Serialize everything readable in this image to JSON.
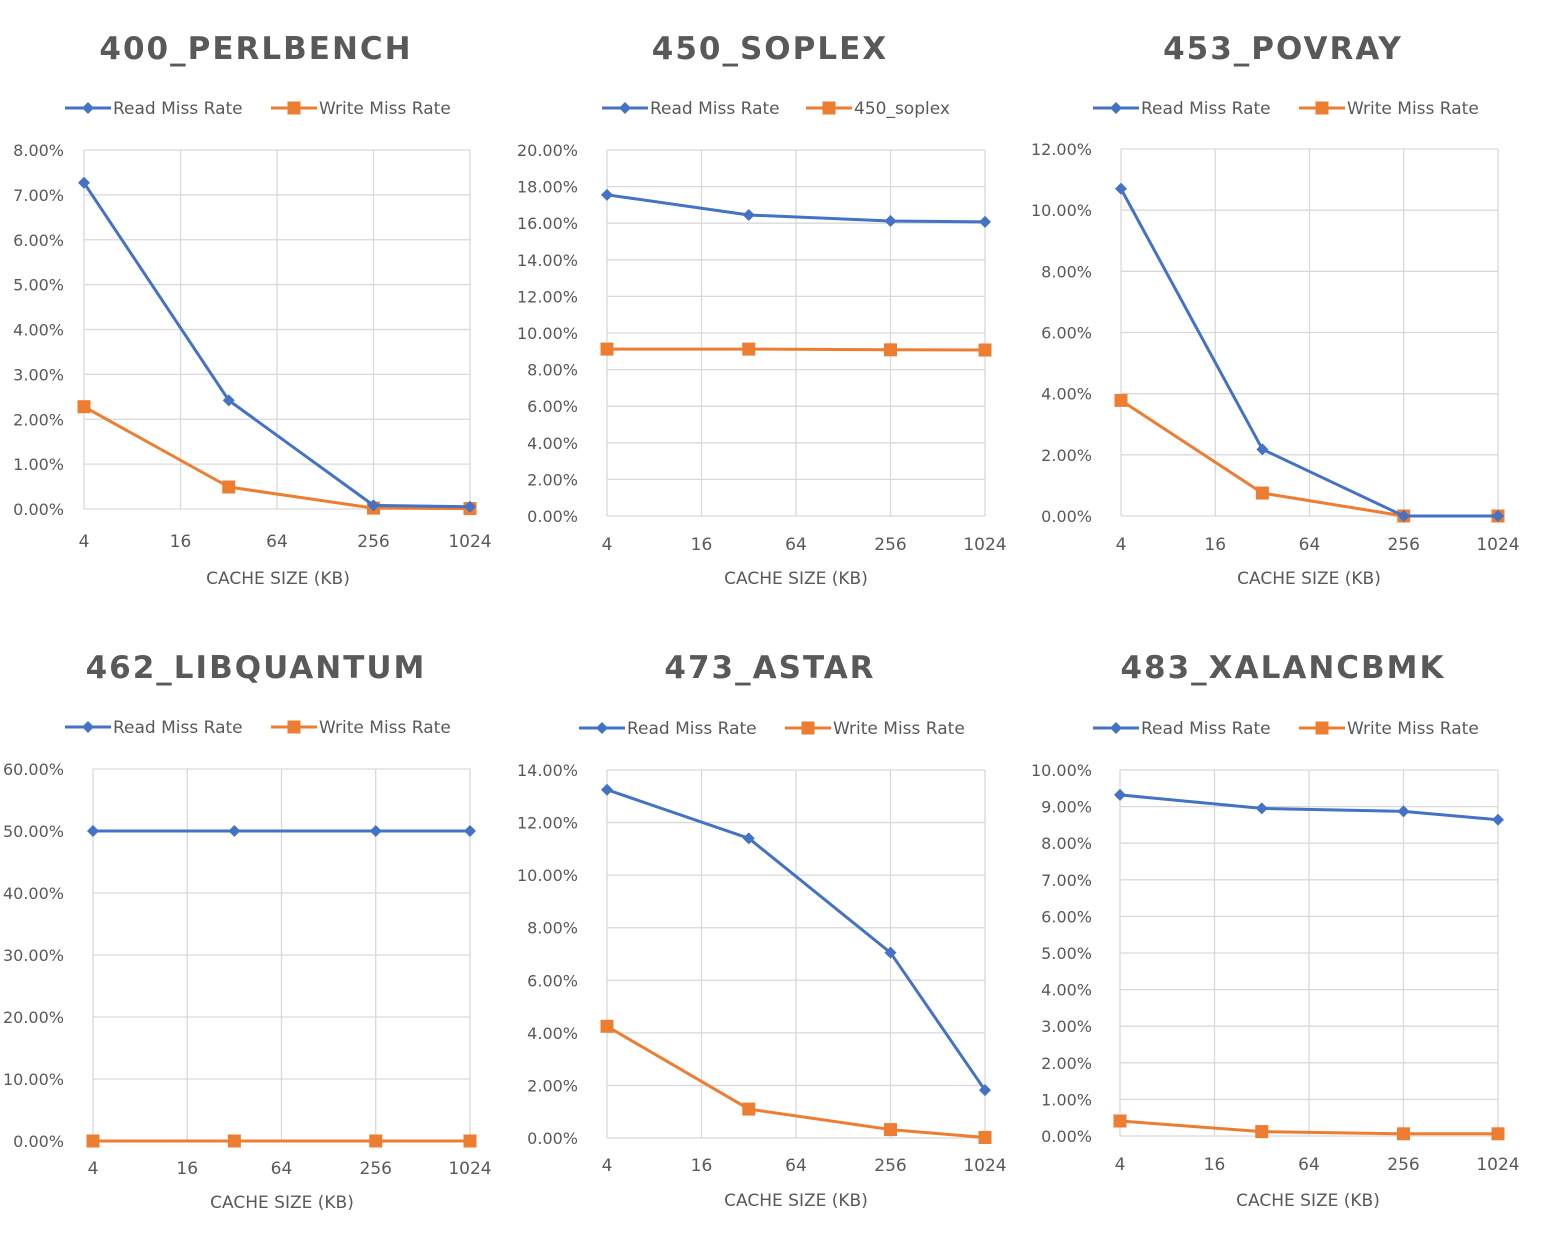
{
  "colors": {
    "read": "#4472C4",
    "write": "#ED7D31",
    "grid": "#D9D9D9",
    "text": "#595959"
  },
  "chart_data": [
    {
      "type": "line",
      "title": "400_PERLBENCH",
      "xlabel": "CACHE SIZE (KB)",
      "x_scale": "log2",
      "x_ticks": [
        "4",
        "16",
        "64",
        "256",
        "1024"
      ],
      "x_tick_values": [
        4,
        16,
        64,
        256,
        1024
      ],
      "x": [
        4,
        32,
        256,
        1024
      ],
      "y_ticks": [
        "0.00%",
        "1.00%",
        "2.00%",
        "3.00%",
        "4.00%",
        "5.00%",
        "6.00%",
        "7.00%",
        "8.00%"
      ],
      "ylim": [
        0,
        8
      ],
      "legend": "top",
      "grid": true,
      "series": [
        {
          "name": "Read Miss Rate",
          "marker": "diamond",
          "values": [
            7.27,
            2.42,
            0.08,
            0.05
          ]
        },
        {
          "name": "Write Miss Rate",
          "marker": "square",
          "values": [
            2.28,
            0.49,
            0.02,
            0.01
          ]
        }
      ]
    },
    {
      "type": "line",
      "title": "450_SOPLEX",
      "xlabel": "CACHE SIZE (KB)",
      "x_scale": "log2",
      "x_ticks": [
        "4",
        "16",
        "64",
        "256",
        "1024"
      ],
      "x_tick_values": [
        4,
        16,
        64,
        256,
        1024
      ],
      "x": [
        4,
        32,
        256,
        1024
      ],
      "y_ticks": [
        "0.00%",
        "2.00%",
        "4.00%",
        "6.00%",
        "8.00%",
        "10.00%",
        "12.00%",
        "14.00%",
        "16.00%",
        "18.00%",
        "20.00%"
      ],
      "ylim": [
        0,
        20
      ],
      "legend": "top",
      "grid": true,
      "series": [
        {
          "name": "Read Miss Rate",
          "marker": "diamond",
          "values": [
            17.55,
            16.45,
            16.12,
            16.07
          ]
        },
        {
          "name": "450_soplex",
          "marker": "square",
          "values": [
            9.12,
            9.12,
            9.08,
            9.07
          ]
        }
      ]
    },
    {
      "type": "line",
      "title": "453_POVRAY",
      "xlabel": "CACHE SIZE (KB)",
      "x_scale": "log2",
      "x_ticks": [
        "4",
        "16",
        "64",
        "256",
        "1024"
      ],
      "x_tick_values": [
        4,
        16,
        64,
        256,
        1024
      ],
      "x": [
        4,
        32,
        256,
        1024
      ],
      "y_ticks": [
        "0.00%",
        "2.00%",
        "4.00%",
        "6.00%",
        "8.00%",
        "10.00%",
        "12.00%"
      ],
      "ylim": [
        0,
        12
      ],
      "legend": "top",
      "grid": true,
      "series": [
        {
          "name": "Read Miss Rate",
          "marker": "diamond",
          "values": [
            10.7,
            2.18,
            0.0,
            0.0
          ]
        },
        {
          "name": "Write Miss Rate",
          "marker": "square",
          "values": [
            3.78,
            0.75,
            0.0,
            0.0
          ]
        }
      ]
    },
    {
      "type": "line",
      "title": "462_LIBQUANTUM",
      "xlabel": "CACHE SIZE (KB)",
      "x_scale": "log2",
      "x_ticks": [
        "4",
        "16",
        "64",
        "256",
        "1024"
      ],
      "x_tick_values": [
        4,
        16,
        64,
        256,
        1024
      ],
      "x": [
        4,
        32,
        256,
        1024
      ],
      "y_ticks": [
        "0.00%",
        "10.00%",
        "20.00%",
        "30.00%",
        "40.00%",
        "50.00%",
        "60.00%"
      ],
      "ylim": [
        0,
        60
      ],
      "legend": "top",
      "grid": true,
      "series": [
        {
          "name": "Read Miss Rate",
          "marker": "diamond",
          "values": [
            50.0,
            50.0,
            50.0,
            50.0
          ]
        },
        {
          "name": "Write Miss Rate",
          "marker": "square",
          "values": [
            0.0,
            0.0,
            0.0,
            0.0
          ]
        }
      ]
    },
    {
      "type": "line",
      "title": "473_ASTAR",
      "xlabel": "CACHE SIZE (KB)",
      "x_scale": "log2",
      "x_ticks": [
        "4",
        "16",
        "64",
        "256",
        "1024"
      ],
      "x_tick_values": [
        4,
        16,
        64,
        256,
        1024
      ],
      "x": [
        4,
        32,
        256,
        1024
      ],
      "y_ticks": [
        "0.00%",
        "2.00%",
        "4.00%",
        "6.00%",
        "8.00%",
        "10.00%",
        "12.00%",
        "14.00%"
      ],
      "ylim": [
        0,
        14
      ],
      "legend": "top",
      "grid": true,
      "series": [
        {
          "name": "Read Miss Rate",
          "marker": "diamond",
          "values": [
            13.25,
            11.4,
            7.05,
            1.82
          ]
        },
        {
          "name": "Write Miss Rate",
          "marker": "square",
          "values": [
            4.25,
            1.1,
            0.32,
            0.02
          ]
        }
      ]
    },
    {
      "type": "line",
      "title": "483_XALANCBMK",
      "xlabel": "CACHE SIZE (KB)",
      "x_scale": "log2",
      "x_ticks": [
        "4",
        "16",
        "64",
        "256",
        "1024"
      ],
      "x_tick_values": [
        4,
        16,
        64,
        256,
        1024
      ],
      "x": [
        4,
        32,
        256,
        1024
      ],
      "y_ticks": [
        "0.00%",
        "1.00%",
        "2.00%",
        "3.00%",
        "4.00%",
        "5.00%",
        "6.00%",
        "7.00%",
        "8.00%",
        "9.00%",
        "10.00%"
      ],
      "ylim": [
        0,
        10
      ],
      "legend": "top",
      "grid": true,
      "series": [
        {
          "name": "Read Miss Rate",
          "marker": "diamond",
          "values": [
            9.32,
            8.95,
            8.87,
            8.64
          ]
        },
        {
          "name": "Write Miss Rate",
          "marker": "square",
          "values": [
            0.41,
            0.12,
            0.06,
            0.06
          ]
        }
      ]
    }
  ]
}
